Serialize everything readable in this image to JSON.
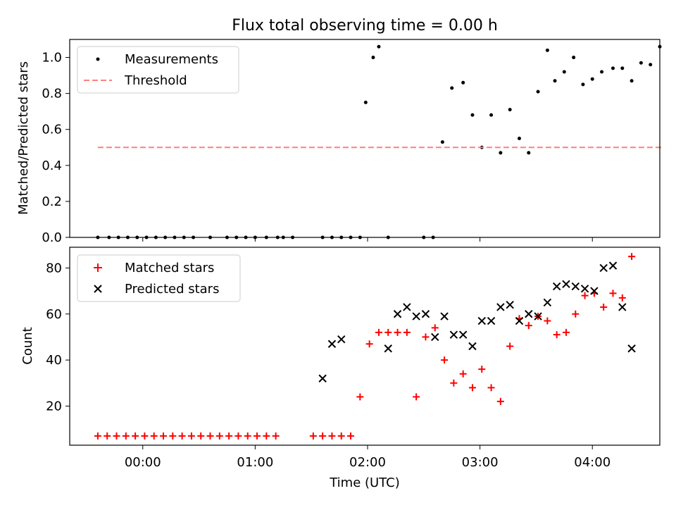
{
  "title": "Flux total observing time = 0.00 h",
  "chart_data": [
    {
      "type": "scatter",
      "ylabel": "Matched/Predicted stars",
      "xlabel": "",
      "xlim": [
        "23:21",
        "04:36"
      ],
      "ylim": [
        0,
        1.1
      ],
      "yticks": [
        0.0,
        0.2,
        0.4,
        0.6,
        0.8,
        1.0
      ],
      "ytick_labels": [
        "0.0",
        "0.2",
        "0.4",
        "0.6",
        "0.8",
        "1.0"
      ],
      "xticks": [
        "00:00",
        "01:00",
        "02:00",
        "03:00",
        "04:00"
      ],
      "legend_position": "top-left",
      "series": [
        {
          "name": "Measurements",
          "marker": "dot",
          "color": "#000000",
          "x": [
            "23:36",
            "23:42",
            "23:47",
            "23:52",
            "23:57",
            "00:02",
            "00:07",
            "00:12",
            "00:17",
            "00:22",
            "00:27",
            "00:36",
            "00:45",
            "00:50",
            "00:55",
            "01:00",
            "01:06",
            "01:12",
            "01:15",
            "01:20",
            "01:36",
            "01:41",
            "01:46",
            "01:51",
            "01:56",
            "01:59",
            "02:03",
            "02:06",
            "02:11",
            "02:30",
            "02:35",
            "02:40",
            "02:45",
            "02:51",
            "02:56",
            "03:01",
            "03:06",
            "03:11",
            "03:16",
            "03:21",
            "03:26",
            "03:31",
            "03:36",
            "03:40",
            "03:45",
            "03:50",
            "03:55",
            "04:00",
            "04:05",
            "04:11",
            "04:16",
            "04:21",
            "04:26",
            "04:31",
            "04:36"
          ],
          "y": [
            0,
            0,
            0,
            0,
            0,
            0,
            0,
            0,
            0,
            0,
            0,
            0,
            0,
            0,
            0,
            0,
            0,
            0,
            0,
            0,
            0,
            0,
            0,
            0,
            0,
            0.75,
            1.0,
            1.06,
            0,
            0,
            0,
            0.53,
            0.83,
            0.86,
            0.68,
            0.5,
            0.68,
            0.47,
            0.71,
            0.55,
            0.47,
            0.81,
            1.04,
            0.87,
            0.92,
            1.0,
            0.85,
            0.88,
            0.92,
            0.94,
            0.94,
            0.87,
            0.97,
            0.96,
            1.06
          ]
        },
        {
          "name": "Threshold",
          "style": "dashed",
          "color": "#ff7f7f",
          "x": [
            "23:36",
            "04:38"
          ],
          "y": [
            0.5,
            0.5
          ]
        }
      ]
    },
    {
      "type": "scatter",
      "ylabel": "Count",
      "xlabel": "Time (UTC)",
      "xlim": [
        "23:21",
        "04:36"
      ],
      "ylim": [
        3,
        89
      ],
      "yticks": [
        20,
        40,
        60,
        80
      ],
      "ytick_labels": [
        "20",
        "40",
        "60",
        "80"
      ],
      "xticks": [
        "00:00",
        "01:00",
        "02:00",
        "03:00",
        "04:00"
      ],
      "xtick_labels": [
        "00:00",
        "01:00",
        "02:00",
        "03:00",
        "04:00"
      ],
      "legend_position": "top-left",
      "series": [
        {
          "name": "Matched stars",
          "marker": "plus",
          "color": "#ff0000",
          "x": [
            "23:36",
            "23:41",
            "23:46",
            "23:51",
            "23:56",
            "24:01",
            "24:06",
            "24:11",
            "24:16",
            "24:21",
            "24:26",
            "24:31",
            "24:36",
            "24:41",
            "24:46",
            "24:51",
            "24:56",
            "25:01",
            "25:06",
            "25:11",
            "25:31",
            "25:36",
            "25:41",
            "25:46",
            "25:51",
            "25:56",
            "26:01",
            "26:06",
            "26:11",
            "26:16",
            "26:21",
            "26:26",
            "26:31",
            "26:36",
            "26:41",
            "26:46",
            "26:51",
            "26:56",
            "27:01",
            "27:06",
            "27:11",
            "27:16",
            "27:21",
            "27:26",
            "27:31",
            "27:36",
            "27:41",
            "27:46",
            "27:51",
            "27:56",
            "28:01",
            "28:06",
            "28:11",
            "28:16",
            "28:21"
          ],
          "y": [
            7,
            7,
            7,
            7,
            7,
            7,
            7,
            7,
            7,
            7,
            7,
            7,
            7,
            7,
            7,
            7,
            7,
            7,
            7,
            7,
            7,
            7,
            7,
            7,
            7,
            24,
            47,
            52,
            52,
            52,
            52,
            24,
            50,
            54,
            40,
            30,
            34,
            28,
            36,
            28,
            22,
            46,
            58,
            55,
            59,
            57,
            51,
            52,
            60,
            68,
            69,
            63,
            69,
            67,
            85
          ]
        },
        {
          "name": "Predicted stars",
          "marker": "x",
          "color": "#000000",
          "x": [
            "25:36",
            "25:41",
            "25:46",
            "26:11",
            "26:16",
            "26:21",
            "26:26",
            "26:31",
            "26:36",
            "26:41",
            "26:46",
            "26:51",
            "26:56",
            "27:01",
            "27:06",
            "27:11",
            "27:16",
            "27:21",
            "27:26",
            "27:31",
            "27:36",
            "27:41",
            "27:46",
            "27:51",
            "27:56",
            "28:01",
            "28:06",
            "28:11",
            "28:16",
            "28:21"
          ],
          "y": [
            32,
            47,
            49,
            45,
            60,
            63,
            59,
            60,
            50,
            59,
            51,
            51,
            46,
            57,
            57,
            63,
            64,
            57,
            60,
            59,
            65,
            72,
            73,
            72,
            71,
            70,
            80,
            81,
            63,
            45
          ]
        }
      ]
    }
  ]
}
